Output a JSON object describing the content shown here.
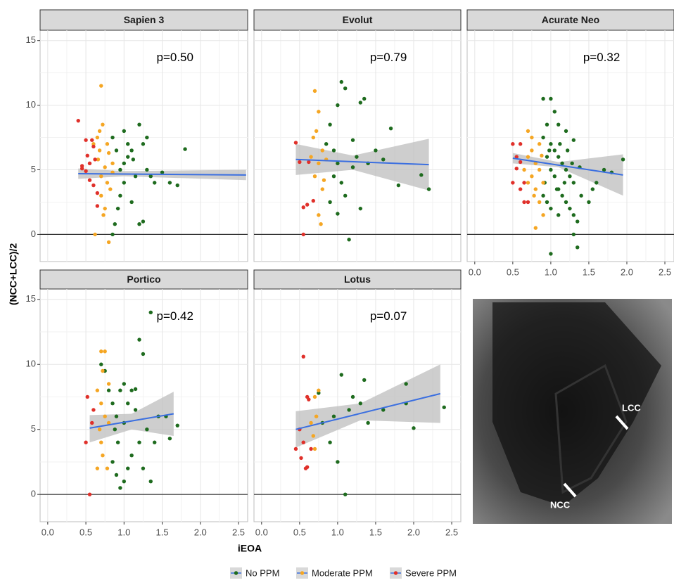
{
  "chart_data": [
    {
      "type": "scatter",
      "title": "Sapien 3",
      "annotation": "p=0.50",
      "xlim": [
        -0.1,
        2.62
      ],
      "ylim": [
        -2.1,
        15.8
      ],
      "xticks": [
        0,
        0.5,
        1,
        1.5,
        2,
        2.5
      ],
      "yticks": [
        0,
        5,
        10,
        15
      ],
      "grid": true,
      "hline": 0,
      "series": [
        {
          "name": "No PPM",
          "color": "#1e6b1e",
          "x": [
            0.85,
            0.9,
            0.95,
            1.0,
            1.05,
            1.1,
            1.0,
            0.95,
            1.1,
            1.2,
            1.25,
            1.15,
            1.3,
            1.35,
            1.4,
            1.5,
            1.6,
            1.7,
            1.8,
            0.85,
            0.88,
            1.05,
            1.2,
            1.25,
            1.0,
            1.3,
            0.92,
            1.12
          ],
          "y": [
            7.5,
            6.5,
            5,
            8,
            7,
            6.5,
            4,
            3,
            2.5,
            8.5,
            7,
            4.5,
            5,
            4.5,
            4,
            4.8,
            4,
            3.8,
            6.6,
            0,
            0.8,
            6,
            0.8,
            1,
            5.5,
            7.5,
            2,
            5.8
          ]
        },
        {
          "name": "Moderate PPM",
          "color": "#f5a623",
          "x": [
            0.7,
            0.72,
            0.65,
            0.68,
            0.75,
            0.7,
            0.8,
            0.78,
            0.8,
            0.62,
            0.7,
            0.75,
            0.85,
            0.82,
            0.68,
            0.73,
            0.6,
            0.78,
            0.85,
            0.66
          ],
          "y": [
            11.5,
            8.5,
            7.5,
            6.5,
            5.2,
            4.5,
            6.3,
            4,
            -0.6,
            0,
            3,
            2,
            5.5,
            3.5,
            8,
            1.5,
            7,
            7,
            4.8,
            5.8
          ]
        },
        {
          "name": "Severe PPM",
          "color": "#e0302a",
          "x": [
            0.4,
            0.45,
            0.5,
            0.52,
            0.55,
            0.55,
            0.6,
            0.6,
            0.62,
            0.65,
            0.5,
            0.58,
            0.65,
            0.45
          ],
          "y": [
            8.8,
            5.1,
            7.3,
            6.1,
            5.5,
            4.2,
            6.8,
            3.8,
            5.8,
            2.2,
            4.9,
            7.3,
            3.2,
            5.3
          ]
        }
      ],
      "fit": {
        "color": "#3b6fe0",
        "x": [
          0.4,
          2.6
        ],
        "y": [
          4.7,
          4.6
        ]
      },
      "band": {
        "x": [
          0.4,
          1.0,
          2.6
        ],
        "lower": [
          4.3,
          4.5,
          4.2
        ],
        "upper": [
          5.1,
          4.9,
          5.0
        ]
      }
    },
    {
      "type": "scatter",
      "title": "Evolut",
      "annotation": "p=0.79",
      "xlim": [
        -0.1,
        2.62
      ],
      "ylim": [
        -2.1,
        15.8
      ],
      "xticks": [
        0,
        0.5,
        1,
        1.5,
        2,
        2.5
      ],
      "yticks": [
        0,
        5,
        10,
        15
      ],
      "grid": true,
      "hline": 0,
      "series": [
        {
          "name": "No PPM",
          "color": "#1e6b1e",
          "x": [
            0.85,
            0.9,
            0.95,
            1.0,
            1.05,
            1.1,
            1.0,
            1.05,
            1.1,
            1.15,
            1.2,
            1.25,
            1.3,
            1.35,
            1.4,
            1.5,
            1.6,
            1.7,
            1.8,
            2.1,
            2.2,
            0.9,
            0.95,
            1.2,
            1.3,
            1.0
          ],
          "y": [
            7,
            8.5,
            6.5,
            10,
            11.8,
            11.3,
            5.5,
            4,
            3,
            -0.4,
            7.3,
            6,
            10.2,
            10.5,
            5.5,
            6.5,
            5.8,
            8.2,
            3.8,
            4.6,
            3.5,
            2.5,
            4.5,
            5.2,
            2,
            1.6
          ]
        },
        {
          "name": "Moderate PPM",
          "color": "#f5a623",
          "x": [
            0.7,
            0.75,
            0.72,
            0.68,
            0.8,
            0.75,
            0.7,
            0.8,
            0.75,
            0.78,
            0.65,
            0.85,
            0.82
          ],
          "y": [
            11.1,
            9.5,
            8,
            7.5,
            6.5,
            5.5,
            4.5,
            3.5,
            1.5,
            0.8,
            6,
            5.8,
            4.2
          ]
        },
        {
          "name": "Severe PPM",
          "color": "#e0302a",
          "x": [
            0.45,
            0.5,
            0.55,
            0.6,
            0.62,
            0.68,
            0.55
          ],
          "y": [
            7.1,
            5.6,
            2.1,
            2.3,
            5.6,
            2.6,
            0
          ]
        }
      ],
      "fit": {
        "color": "#3b6fe0",
        "x": [
          0.45,
          2.2
        ],
        "y": [
          5.8,
          5.4
        ]
      },
      "band": {
        "x": [
          0.45,
          1.2,
          2.2
        ],
        "lower": [
          4.6,
          5.0,
          3.4
        ],
        "upper": [
          7.0,
          6.1,
          7.4
        ]
      }
    },
    {
      "type": "scatter",
      "title": "Acurate Neo",
      "annotation": "p=0.32",
      "xlim": [
        -0.1,
        2.62
      ],
      "ylim": [
        -2.1,
        15.8
      ],
      "xticks": [
        {
          "value": 0,
          "label": "0.0"
        },
        0.5,
        {
          "value": 1,
          "label": "1.0"
        },
        1.5,
        {
          "value": 2,
          "label": "2.0"
        },
        2.5
      ],
      "yticks": [
        0,
        5,
        10,
        15
      ],
      "grid": true,
      "hline": 0,
      "series": [
        {
          "name": "No PPM",
          "color": "#1e6b1e",
          "x": [
            0.9,
            1.0,
            1.05,
            0.95,
            1.1,
            1.2,
            1.3,
            0.9,
            1.0,
            1.05,
            1.1,
            1.15,
            1.2,
            1.25,
            1.3,
            0.95,
            1.0,
            1.05,
            1.1,
            1.15,
            1.2,
            1.25,
            1.3,
            1.35,
            1.3,
            1.35,
            1.0,
            1.4,
            1.5,
            1.55,
            1.6,
            1.7,
            1.8,
            1.95,
            0.9,
            0.95,
            1.0,
            1.1,
            0.92,
            1.12,
            1.22,
            1.08,
            1.18,
            1.28,
            0.98,
            1.38
          ],
          "y": [
            10.5,
            10.5,
            9.5,
            8.5,
            8.5,
            8,
            7.3,
            7.5,
            7,
            6.5,
            6,
            5.5,
            5,
            4.5,
            4,
            6,
            5,
            4.5,
            3.5,
            3,
            2.5,
            2,
            1.5,
            1,
            0,
            -1,
            -1.5,
            3,
            2.5,
            3.5,
            4,
            5,
            4.8,
            5.8,
            3,
            2.5,
            2,
            1.5,
            4,
            7,
            6.5,
            3.5,
            4,
            5.5,
            6.5,
            5.2
          ]
        },
        {
          "name": "Moderate PPM",
          "color": "#f5a623",
          "x": [
            0.7,
            0.75,
            0.7,
            0.8,
            0.85,
            0.75,
            0.8,
            0.85,
            0.9,
            0.8,
            0.7,
            0.75,
            0.85,
            0.9,
            0.65,
            0.78,
            0.88
          ],
          "y": [
            8,
            7.5,
            6,
            5.5,
            7,
            4.5,
            3.5,
            2.5,
            1.5,
            0.5,
            4,
            6.5,
            5,
            4,
            5,
            3,
            6.1
          ]
        },
        {
          "name": "Severe PPM",
          "color": "#e0302a",
          "x": [
            0.5,
            0.55,
            0.5,
            0.6,
            0.65,
            0.6,
            0.7,
            0.55,
            0.65,
            0.6
          ],
          "y": [
            7,
            6,
            4,
            5.6,
            4,
            3.5,
            2.5,
            5.1,
            2.5,
            7
          ]
        }
      ],
      "fit": {
        "color": "#3b6fe0",
        "x": [
          0.5,
          1.95
        ],
        "y": [
          5.9,
          4.6
        ]
      },
      "band": {
        "x": [
          0.5,
          1.1,
          1.95
        ],
        "lower": [
          5.5,
          5.2,
          3.0
        ],
        "upper": [
          6.3,
          5.6,
          6.2
        ]
      }
    },
    {
      "type": "scatter",
      "title": "Portico",
      "annotation": "p=0.42",
      "xlim": [
        -0.1,
        2.62
      ],
      "ylim": [
        -2.1,
        15.8
      ],
      "xticks": [
        {
          "value": 0,
          "label": "0.0"
        },
        0.5,
        {
          "value": 1,
          "label": "1.0"
        },
        1.5,
        {
          "value": 2,
          "label": "2.0"
        },
        2.5
      ],
      "yticks": [
        0,
        5,
        10,
        15
      ],
      "grid": true,
      "hline": 0,
      "series": [
        {
          "name": "No PPM",
          "color": "#1e6b1e",
          "x": [
            0.7,
            0.75,
            0.8,
            0.85,
            0.9,
            0.95,
            1.0,
            1.05,
            1.1,
            1.15,
            1.2,
            1.25,
            1.35,
            1.3,
            1.4,
            1.45,
            1.55,
            1.6,
            1.7,
            0.85,
            0.9,
            0.95,
            1.0,
            1.05,
            1.1,
            0.92,
            1.0,
            1.2,
            1.25,
            1.35,
            1.15,
            0.88
          ],
          "y": [
            10,
            9.5,
            8,
            7,
            6,
            8,
            8.5,
            7,
            8,
            6.5,
            11.9,
            10.8,
            14,
            5,
            4,
            6,
            6,
            4.3,
            5.3,
            2.5,
            1.5,
            0.5,
            1,
            2,
            3,
            4,
            5.5,
            4,
            2,
            1,
            8.1,
            5
          ]
        },
        {
          "name": "Moderate PPM",
          "color": "#f5a623",
          "x": [
            0.7,
            0.75,
            0.65,
            0.7,
            0.75,
            0.68,
            0.7,
            0.72,
            0.65,
            0.78,
            0.8,
            0.8,
            0.72
          ],
          "y": [
            11,
            11,
            8,
            7,
            6,
            5,
            4,
            3,
            2,
            2,
            5.5,
            8.5,
            9.5
          ]
        },
        {
          "name": "Severe PPM",
          "color": "#e0302a",
          "x": [
            0.5,
            0.52,
            0.55,
            0.6,
            0.58
          ],
          "y": [
            4,
            7.5,
            0,
            6.5,
            5.5
          ]
        }
      ],
      "fit": {
        "color": "#3b6fe0",
        "x": [
          0.55,
          1.65
        ],
        "y": [
          5.1,
          6.2
        ]
      },
      "band": {
        "x": [
          0.55,
          1.1,
          1.65
        ],
        "lower": [
          4.0,
          5.0,
          4.5
        ],
        "upper": [
          6.1,
          6.2,
          7.9
        ]
      }
    },
    {
      "type": "scatter",
      "title": "Lotus",
      "annotation": "p=0.07",
      "xlim": [
        -0.1,
        2.62
      ],
      "ylim": [
        -2.1,
        15.8
      ],
      "xticks": [
        {
          "value": 0,
          "label": "0.0"
        },
        0.5,
        {
          "value": 1,
          "label": "1.0"
        },
        1.5,
        {
          "value": 2,
          "label": "2.0"
        },
        2.5
      ],
      "yticks": [
        0,
        5,
        10,
        15
      ],
      "grid": true,
      "hline": 0,
      "series": [
        {
          "name": "No PPM",
          "color": "#1e6b1e",
          "x": [
            0.75,
            0.8,
            0.9,
            1.0,
            1.05,
            1.1,
            1.15,
            1.2,
            1.3,
            1.35,
            1.4,
            1.6,
            1.9,
            1.9,
            2.0,
            2.4,
            0.95
          ],
          "y": [
            7.8,
            5.5,
            4,
            2.5,
            9.2,
            0,
            6.5,
            7.5,
            7,
            8.8,
            5.5,
            6.5,
            8.5,
            7,
            5.1,
            6.7,
            6
          ]
        },
        {
          "name": "Moderate PPM",
          "color": "#f5a623",
          "x": [
            0.65,
            0.7,
            0.75,
            0.72,
            0.68,
            0.7
          ],
          "y": [
            5.5,
            7.5,
            8,
            6,
            4.5,
            3.5
          ]
        },
        {
          "name": "Severe PPM",
          "color": "#e0302a",
          "x": [
            0.45,
            0.5,
            0.55,
            0.6,
            0.55,
            0.6,
            0.65,
            0.62,
            0.52,
            0.58
          ],
          "y": [
            3.5,
            5,
            10.6,
            7.5,
            4,
            2.1,
            3.5,
            7.3,
            2.8,
            2
          ]
        }
      ],
      "fit": {
        "color": "#3b6fe0",
        "x": [
          0.45,
          2.35
        ],
        "y": [
          5.0,
          7.75
        ]
      },
      "band": {
        "x": [
          0.45,
          1.3,
          2.35
        ],
        "lower": [
          3.6,
          5.7,
          5.5
        ],
        "upper": [
          6.4,
          7.0,
          10.0
        ]
      }
    }
  ],
  "axis_labels": {
    "x": "iEOA",
    "y": "(NCC+LCC)/2"
  },
  "image": {
    "labels": [
      "LCC",
      "NCC"
    ]
  }
}
